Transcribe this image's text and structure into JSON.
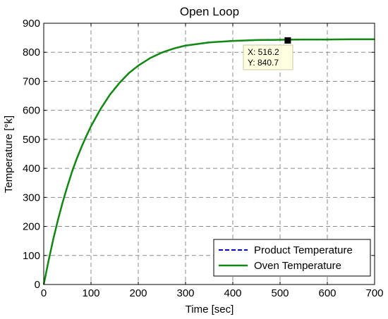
{
  "chart_data": {
    "type": "line",
    "title": "Open Loop",
    "xlabel": "Time [sec]",
    "ylabel": "Temperature [°k]",
    "xlim": [
      0,
      700
    ],
    "ylim": [
      0,
      900
    ],
    "x_ticks": [
      0,
      100,
      200,
      300,
      400,
      500,
      600,
      700
    ],
    "y_ticks": [
      0,
      100,
      200,
      300,
      400,
      500,
      600,
      700,
      800,
      900
    ],
    "grid": true,
    "legend_position": "bottom-right",
    "series": [
      {
        "name": "Product Temperature",
        "color": "#0000cc",
        "style": "dashed",
        "x": [
          0,
          10,
          20,
          30,
          40,
          50,
          60,
          70,
          80,
          90,
          100,
          120,
          140,
          160,
          180,
          200,
          225,
          250,
          275,
          300,
          350,
          400,
          450,
          500,
          550,
          600
        ],
        "y": [
          0,
          80,
          155,
          222,
          283,
          338,
          389,
          434,
          474,
          511,
          545,
          604,
          654,
          694,
          728,
          754,
          780,
          799,
          813,
          823,
          834,
          839,
          842,
          843,
          844,
          844
        ]
      },
      {
        "name": "Oven Temperature",
        "color": "#118811",
        "style": "solid",
        "x": [
          0,
          10,
          20,
          30,
          40,
          50,
          60,
          70,
          80,
          90,
          100,
          120,
          140,
          160,
          180,
          200,
          225,
          250,
          275,
          300,
          350,
          400,
          450,
          500,
          550,
          600,
          650,
          700
        ],
        "y": [
          0,
          80,
          155,
          222,
          283,
          338,
          389,
          434,
          474,
          511,
          545,
          604,
          654,
          694,
          728,
          754,
          780,
          799,
          813,
          823,
          834,
          839,
          842,
          843,
          844,
          844,
          845,
          845
        ]
      }
    ],
    "datatip": {
      "x": 516.2,
      "y": 840.7,
      "x_text": "X: 516.2",
      "y_text": "Y: 840.7"
    }
  }
}
